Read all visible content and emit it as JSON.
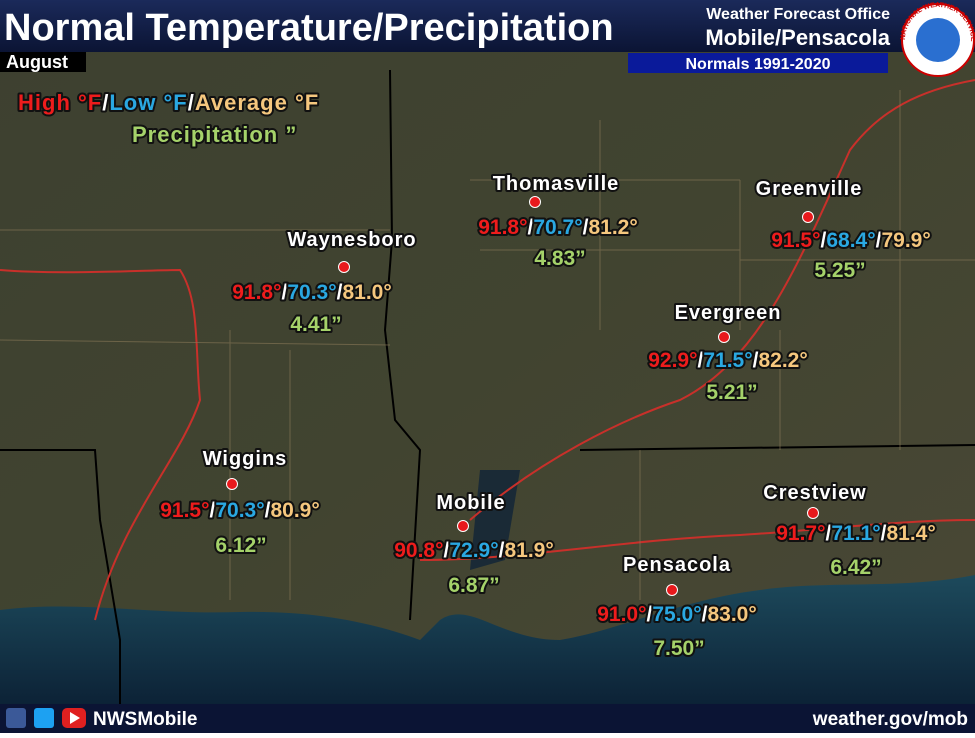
{
  "header": {
    "title": "Normal Temperature/Precipitation",
    "month": "August",
    "office_line1": "Weather Forecast Office",
    "office_line2": "Mobile/Pensacola",
    "normals": "Normals 1991-2020",
    "logo_text": "NATIONAL WEATHER SERVICE"
  },
  "legend": {
    "high": "High °F",
    "low": "Low °F",
    "average": "Average °F",
    "precipitation": "Precipitation ”",
    "separator": "/"
  },
  "stations": [
    {
      "name": "Thomasville",
      "high": "91.8°",
      "low": "70.7°",
      "average": "81.2°",
      "precipitation": "4.83”"
    },
    {
      "name": "Greenville",
      "high": "91.5°",
      "low": "68.4°",
      "average": "79.9°",
      "precipitation": "5.25”"
    },
    {
      "name": "Waynesboro",
      "high": "91.8°",
      "low": "70.3°",
      "average": "81.0°",
      "precipitation": "4.41”"
    },
    {
      "name": "Evergreen",
      "high": "92.9°",
      "low": "71.5°",
      "average": "82.2°",
      "precipitation": "5.21”"
    },
    {
      "name": "Wiggins",
      "high": "91.5°",
      "low": "70.3°",
      "average": "80.9°",
      "precipitation": "6.12”"
    },
    {
      "name": "Mobile",
      "high": "90.8°",
      "low": "72.9°",
      "average": "81.9°",
      "precipitation": "6.87”"
    },
    {
      "name": "Crestview",
      "high": "91.7°",
      "low": "71.1°",
      "average": "81.4°",
      "precipitation": "6.42”"
    },
    {
      "name": "Pensacola",
      "high": "91.0°",
      "low": "75.0°",
      "average": "83.0°",
      "precipitation": "7.50”"
    }
  ],
  "footer": {
    "social": "NWSMobile",
    "url": "weather.gov/mob"
  }
}
